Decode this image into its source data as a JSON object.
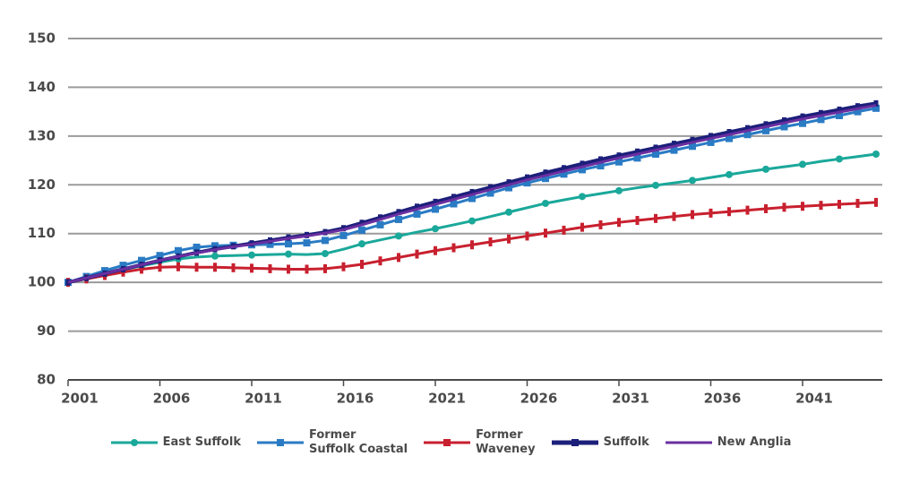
{
  "chart_data": {
    "type": "line",
    "x": [
      2001,
      2002,
      2003,
      2004,
      2005,
      2006,
      2007,
      2008,
      2009,
      2010,
      2011,
      2012,
      2013,
      2014,
      2015,
      2016,
      2017,
      2018,
      2019,
      2020,
      2021,
      2022,
      2023,
      2024,
      2025,
      2026,
      2027,
      2028,
      2029,
      2030,
      2031,
      2032,
      2033,
      2034,
      2035,
      2036,
      2037,
      2038,
      2039,
      2040,
      2041,
      2042,
      2043,
      2044,
      2045
    ],
    "xlim": [
      2001,
      2045
    ],
    "xticks": [
      2001,
      2006,
      2011,
      2016,
      2021,
      2026,
      2031,
      2036,
      2041
    ],
    "ylim": [
      80,
      150
    ],
    "yticks": [
      80,
      90,
      100,
      110,
      120,
      130,
      140,
      150
    ],
    "grid": true,
    "series": [
      {
        "name": "East Suffolk",
        "color": "#1aa89a",
        "marker": "circle",
        "values": [
          100,
          100.8,
          101.7,
          102.6,
          103.4,
          104.1,
          104.8,
          105.2,
          105.4,
          105.5,
          105.6,
          105.7,
          105.8,
          105.7,
          105.9,
          106.8,
          107.9,
          108.7,
          109.5,
          110.3,
          111,
          111.8,
          112.6,
          113.5,
          114.4,
          115.3,
          116.2,
          116.9,
          117.6,
          118.2,
          118.8,
          119.4,
          119.9,
          120.4,
          120.9,
          121.5,
          122.1,
          122.7,
          123.2,
          123.7,
          124.2,
          124.8,
          125.3,
          125.8,
          126.3
        ]
      },
      {
        "name": "Former\nSuffolk Coastal",
        "color": "#2a7bc4",
        "marker": "square",
        "values": [
          100,
          101.2,
          102.4,
          103.5,
          104.5,
          105.5,
          106.5,
          107.2,
          107.5,
          107.6,
          107.7,
          107.8,
          107.9,
          108.1,
          108.6,
          109.6,
          110.7,
          111.8,
          112.9,
          114,
          115,
          116.1,
          117.2,
          118.3,
          119.4,
          120.4,
          121.3,
          122.2,
          123.1,
          123.9,
          124.7,
          125.5,
          126.3,
          127.1,
          127.9,
          128.7,
          129.5,
          130.3,
          131.1,
          131.9,
          132.6,
          133.4,
          134.2,
          135,
          135.7
        ]
      },
      {
        "name": "Former\nWaveney",
        "color": "#c8202f",
        "marker": "bar",
        "values": [
          100,
          100.7,
          101.4,
          102.1,
          102.7,
          103.1,
          103.2,
          103.1,
          103.1,
          103,
          102.9,
          102.8,
          102.7,
          102.7,
          102.8,
          103.2,
          103.7,
          104.4,
          105.1,
          105.8,
          106.5,
          107.1,
          107.7,
          108.3,
          108.9,
          109.5,
          110.1,
          110.7,
          111.3,
          111.8,
          112.3,
          112.7,
          113.1,
          113.5,
          113.9,
          114.2,
          114.5,
          114.8,
          115.1,
          115.4,
          115.6,
          115.8,
          116,
          116.2,
          116.4
        ]
      },
      {
        "name": "Suffolk",
        "color": "#1c1f7a",
        "marker": "dense",
        "values": [
          100,
          100.9,
          101.8,
          102.7,
          103.6,
          104.5,
          105.3,
          106.1,
          106.8,
          107.4,
          108,
          108.6,
          109.2,
          109.7,
          110.3,
          111.1,
          112.2,
          113.3,
          114.4,
          115.5,
          116.5,
          117.5,
          118.5,
          119.5,
          120.5,
          121.5,
          122.5,
          123.4,
          124.3,
          125.2,
          126,
          126.8,
          127.6,
          128.4,
          129.2,
          130,
          130.8,
          131.6,
          132.4,
          133.2,
          134,
          134.7,
          135.4,
          136.1,
          136.7
        ]
      },
      {
        "name": "New Anglia",
        "color": "#6b2fa0",
        "marker": "none",
        "values": [
          100,
          100.9,
          101.8,
          102.7,
          103.6,
          104.5,
          105.3,
          106,
          106.7,
          107.3,
          107.8,
          108.4,
          109,
          109.5,
          110.1,
          110.8,
          111.8,
          112.9,
          114,
          115,
          116,
          117,
          118,
          119,
          120,
          121,
          121.9,
          122.8,
          123.7,
          124.6,
          125.5,
          126.3,
          127.1,
          127.9,
          128.7,
          129.5,
          130.3,
          131.1,
          131.9,
          132.7,
          133.5,
          134.2,
          134.9,
          135.6,
          136.3
        ]
      }
    ]
  }
}
